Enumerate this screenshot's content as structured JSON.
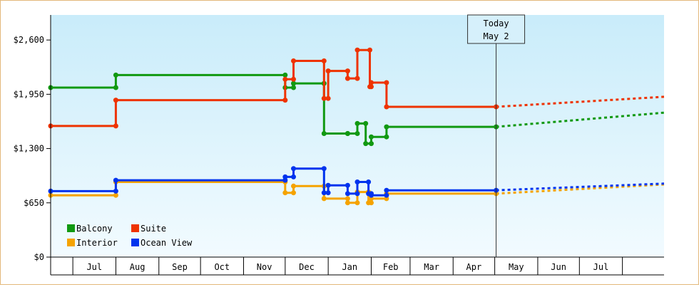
{
  "chart_data": {
    "type": "line",
    "title": "",
    "xlabel": "",
    "ylabel": "",
    "ylim": [
      0,
      2900
    ],
    "y_ticks": [
      {
        "value": 0,
        "label": "$0"
      },
      {
        "value": 650,
        "label": "$650"
      },
      {
        "value": 1300,
        "label": "$1,300"
      },
      {
        "value": 1950,
        "label": "$1,950"
      },
      {
        "value": 2600,
        "label": "$2,600"
      }
    ],
    "x_months": [
      "Jul",
      "Aug",
      "Sep",
      "Oct",
      "Nov",
      "Dec",
      "Jan",
      "Feb",
      "Mar",
      "Apr",
      "May",
      "Jun",
      "Jul"
    ],
    "x_domain": [
      "2016-06-15",
      "2017-08-31"
    ],
    "x_month_boundaries": [
      "2016-07-01",
      "2016-08-01",
      "2016-09-01",
      "2016-10-01",
      "2016-11-01",
      "2016-12-01",
      "2017-01-01",
      "2017-02-01",
      "2017-03-01",
      "2017-04-01",
      "2017-05-01",
      "2017-06-01",
      "2017-07-01",
      "2017-08-01"
    ],
    "today": {
      "date": "2017-05-02",
      "label_line1": "Today",
      "label_line2": "May 2"
    },
    "legend_position": "bottom-left",
    "grid": false,
    "background": "gradient sky-blue",
    "series": [
      {
        "name": "Balcony",
        "color": "#119911",
        "points": [
          [
            "2016-06-15",
            2030
          ],
          [
            "2016-08-01",
            2030
          ],
          [
            "2016-08-01",
            2180
          ],
          [
            "2016-12-01",
            2180
          ],
          [
            "2016-12-01",
            2030
          ],
          [
            "2016-12-07",
            2030
          ],
          [
            "2016-12-07",
            2080
          ],
          [
            "2016-12-29",
            2080
          ],
          [
            "2016-12-29",
            1480
          ],
          [
            "2017-01-15",
            1480
          ],
          [
            "2017-01-15",
            1480
          ],
          [
            "2017-01-22",
            1480
          ],
          [
            "2017-01-22",
            1600
          ],
          [
            "2017-01-28",
            1600
          ],
          [
            "2017-01-28",
            1360
          ],
          [
            "2017-02-01",
            1360
          ],
          [
            "2017-02-01",
            1440
          ],
          [
            "2017-02-12",
            1440
          ],
          [
            "2017-02-12",
            1560
          ],
          [
            "2017-05-02",
            1560
          ]
        ],
        "forecast": [
          [
            "2017-05-02",
            1560
          ],
          [
            "2017-08-31",
            1730
          ]
        ]
      },
      {
        "name": "Suite",
        "color": "#ee3300",
        "points": [
          [
            "2016-06-15",
            1570
          ],
          [
            "2016-08-01",
            1570
          ],
          [
            "2016-08-01",
            1880
          ],
          [
            "2016-12-01",
            1880
          ],
          [
            "2016-12-01",
            2130
          ],
          [
            "2016-12-07",
            2130
          ],
          [
            "2016-12-07",
            2350
          ],
          [
            "2016-12-29",
            2350
          ],
          [
            "2016-12-29",
            1900
          ],
          [
            "2017-01-01",
            1900
          ],
          [
            "2017-01-01",
            2230
          ],
          [
            "2017-01-15",
            2230
          ],
          [
            "2017-01-15",
            2140
          ],
          [
            "2017-01-22",
            2140
          ],
          [
            "2017-01-22",
            2480
          ],
          [
            "2017-01-31",
            2480
          ],
          [
            "2017-01-31",
            2040
          ],
          [
            "2017-02-01",
            2040
          ],
          [
            "2017-02-01",
            2090
          ],
          [
            "2017-02-12",
            2090
          ],
          [
            "2017-02-12",
            1800
          ],
          [
            "2017-05-02",
            1800
          ]
        ],
        "forecast": [
          [
            "2017-05-02",
            1800
          ],
          [
            "2017-08-31",
            1920
          ]
        ]
      },
      {
        "name": "Interior",
        "color": "#f5a300",
        "points": [
          [
            "2016-06-15",
            740
          ],
          [
            "2016-08-01",
            740
          ],
          [
            "2016-08-01",
            900
          ],
          [
            "2016-12-01",
            900
          ],
          [
            "2016-12-01",
            770
          ],
          [
            "2016-12-07",
            770
          ],
          [
            "2016-12-07",
            850
          ],
          [
            "2016-12-29",
            850
          ],
          [
            "2016-12-29",
            700
          ],
          [
            "2017-01-15",
            700
          ],
          [
            "2017-01-15",
            650
          ],
          [
            "2017-01-22",
            650
          ],
          [
            "2017-01-22",
            780
          ],
          [
            "2017-01-30",
            780
          ],
          [
            "2017-01-30",
            650
          ],
          [
            "2017-02-01",
            650
          ],
          [
            "2017-02-01",
            700
          ],
          [
            "2017-02-12",
            700
          ],
          [
            "2017-02-12",
            760
          ],
          [
            "2017-05-02",
            760
          ]
        ],
        "forecast": [
          [
            "2017-05-02",
            760
          ],
          [
            "2017-08-31",
            870
          ]
        ]
      },
      {
        "name": "Ocean View",
        "color": "#0033ee",
        "points": [
          [
            "2016-06-15",
            790
          ],
          [
            "2016-08-01",
            790
          ],
          [
            "2016-08-01",
            920
          ],
          [
            "2016-12-01",
            920
          ],
          [
            "2016-12-01",
            960
          ],
          [
            "2016-12-07",
            960
          ],
          [
            "2016-12-07",
            1060
          ],
          [
            "2016-12-29",
            1060
          ],
          [
            "2016-12-29",
            770
          ],
          [
            "2017-01-01",
            770
          ],
          [
            "2017-01-01",
            860
          ],
          [
            "2017-01-15",
            860
          ],
          [
            "2017-01-15",
            760
          ],
          [
            "2017-01-22",
            760
          ],
          [
            "2017-01-22",
            900
          ],
          [
            "2017-01-30",
            900
          ],
          [
            "2017-01-30",
            760
          ],
          [
            "2017-02-01",
            760
          ],
          [
            "2017-02-01",
            740
          ],
          [
            "2017-02-12",
            740
          ],
          [
            "2017-02-12",
            800
          ],
          [
            "2017-05-02",
            800
          ]
        ],
        "forecast": [
          [
            "2017-05-02",
            800
          ],
          [
            "2017-08-31",
            880
          ]
        ]
      }
    ]
  }
}
